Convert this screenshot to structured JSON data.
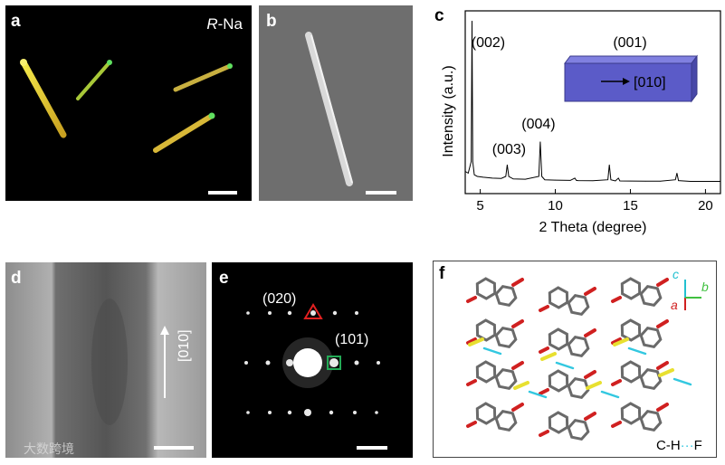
{
  "panel_a": {
    "label": "a",
    "sample_italic": "R",
    "sample_rest": "-Na"
  },
  "panel_b": {
    "label": "b"
  },
  "panel_c": {
    "label": "c"
  },
  "panel_d": {
    "label": "d",
    "direction": "[010]"
  },
  "panel_e": {
    "label": "e",
    "spot_020": "(020)",
    "spot_101": "(101)"
  },
  "panel_f": {
    "label": "f",
    "axis_c": "c",
    "axis_a": "a",
    "axis_b": "b",
    "caption_left": "C-H",
    "caption_dots": "···",
    "caption_right": "F"
  },
  "watermark": "大数跨境",
  "colors": {
    "image_bg": "#000000",
    "sem_bg": "#6e6e6e",
    "crystal_face": "#5b5bc8",
    "triangle": "#e02020",
    "square": "#22aa55",
    "contact": "#33c8e0"
  },
  "chart_data": {
    "type": "line",
    "title": "",
    "xlabel": "2 Theta (degree)",
    "ylabel": "Intensity (a.u.)",
    "xlim": [
      4,
      21
    ],
    "xticks": [
      5,
      10,
      15,
      20
    ],
    "xtick_labels": [
      "5",
      "10",
      "15",
      "20"
    ],
    "y_tick_labels": false,
    "grid": false,
    "series": [
      {
        "x": [
          4.0,
          4.2,
          4.4,
          4.45,
          4.5,
          4.6,
          4.8,
          5.2,
          5.8,
          6.4,
          6.7,
          6.8,
          6.9,
          7.2,
          8.0,
          8.9,
          9.0,
          9.1,
          9.3,
          10.0,
          11.0,
          11.3,
          11.4,
          11.5,
          12.5,
          13.5,
          13.6,
          13.7,
          14.0,
          14.2,
          14.3,
          15.0,
          16.0,
          17.0,
          18.0,
          18.1,
          18.2,
          19.0,
          20.0,
          21.0
        ],
        "y": [
          9,
          8,
          15,
          100,
          15,
          7,
          6,
          5.5,
          5,
          4.8,
          6,
          13,
          6,
          4.5,
          4.3,
          6,
          27,
          6,
          4,
          3.8,
          3.6,
          5,
          3.6,
          3.5,
          3.4,
          4,
          13,
          4,
          3.3,
          5,
          3.3,
          3.2,
          3.1,
          3.1,
          4,
          8,
          3.5,
          3,
          3,
          3
        ]
      }
    ],
    "annotations": [
      {
        "text": "(002)",
        "x": 4.45
      },
      {
        "text": "(003)",
        "x": 6.8
      },
      {
        "text": "(004)",
        "x": 9.0
      }
    ],
    "inset": {
      "top_label": "(001)",
      "arrow_label": "[010]"
    }
  }
}
